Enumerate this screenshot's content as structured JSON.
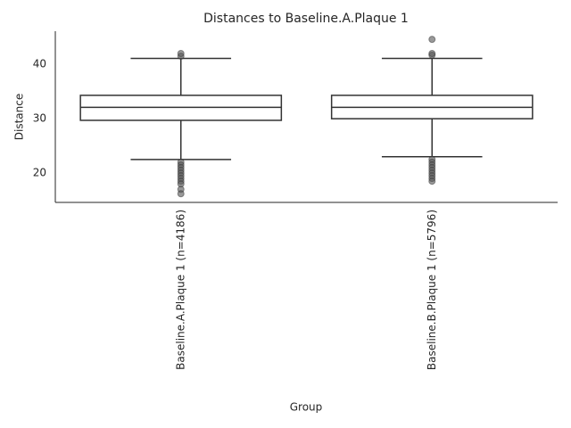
{
  "chart_data": {
    "type": "box",
    "title": "Distances to Baseline.A.Plaque 1",
    "x_label": "Group",
    "y_label": "Distance",
    "categories": [
      "Baseline.A.Plaque 1 (n=4186)",
      "Baseline.B.Plaque 1 (n=5796)"
    ],
    "boxes": [
      {
        "whisker_low": 22.5,
        "q1": 29.7,
        "median": 32.1,
        "q3": 34.3,
        "whisker_high": 41.1,
        "outliers": [
          41.5,
          42.0,
          22.0,
          21.5,
          21.0,
          20.5,
          20.0,
          19.5,
          19.0,
          18.5,
          18.0,
          17.0,
          16.2
        ]
      },
      {
        "whisker_low": 23.0,
        "q1": 30.0,
        "median": 32.1,
        "q3": 34.3,
        "whisker_high": 41.1,
        "outliers": [
          41.7,
          42.0,
          44.6,
          22.5,
          22.0,
          21.5,
          21.0,
          20.5,
          20.0,
          19.5,
          19.0,
          18.5
        ]
      }
    ],
    "box_color": "#ffffff",
    "line_color": "#333333",
    "outlier_color": "#555555",
    "ylim": [
      14.6,
      46.1
    ],
    "yticks": [
      20,
      30,
      40
    ],
    "grid": false
  }
}
